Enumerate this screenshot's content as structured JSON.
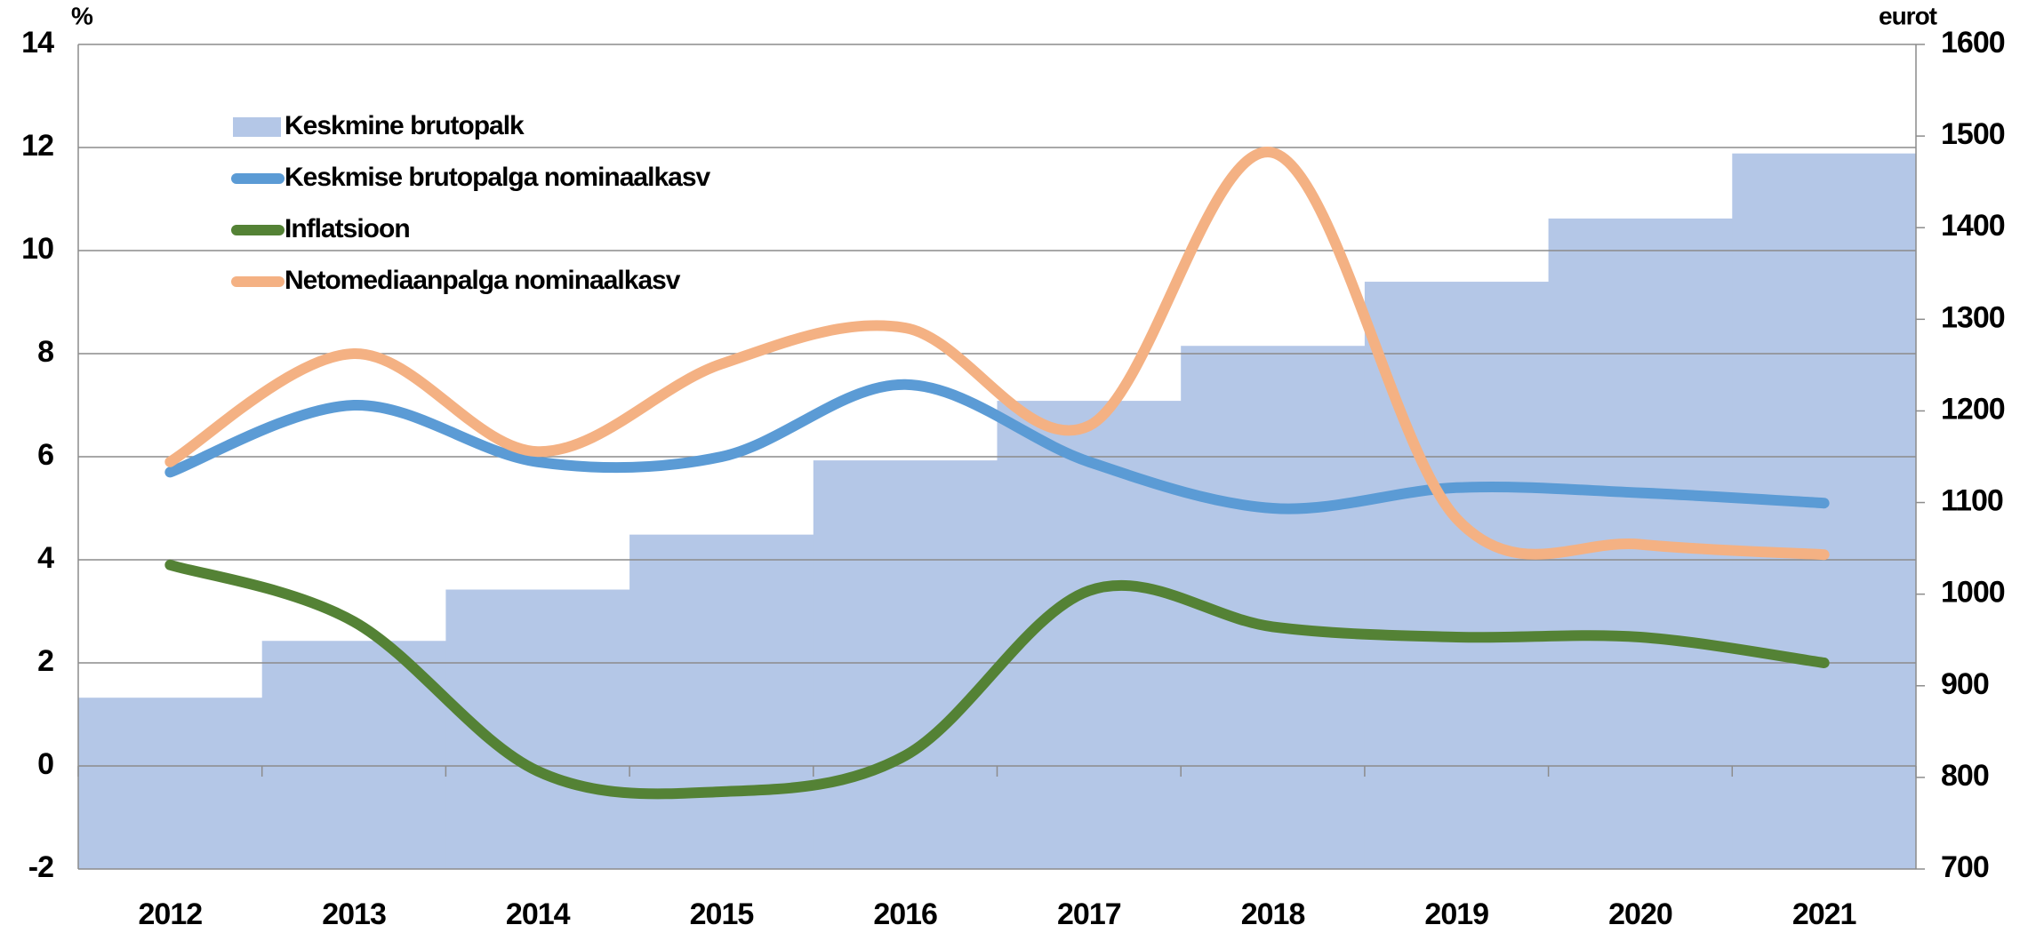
{
  "chart_data": {
    "type": "bar-line",
    "ylabel": "%",
    "y2label": "eurot",
    "categories": [
      "2012",
      "2013",
      "2014",
      "2015",
      "2016",
      "2017",
      "2018",
      "2019",
      "2020",
      "2021"
    ],
    "ylim": [
      -2,
      14
    ],
    "yticks": [
      -2,
      0,
      2,
      4,
      6,
      8,
      10,
      12,
      14
    ],
    "y2lim": [
      700,
      1600
    ],
    "y2ticks": [
      700,
      800,
      900,
      1000,
      1100,
      1200,
      1300,
      1400,
      1500,
      1600
    ],
    "grid": true,
    "legend": "upper left",
    "series": [
      {
        "name": "Keskmine brutopalk",
        "type": "bar",
        "axis": "y2",
        "color": "#b4c7e7",
        "values": [
          887,
          949,
          1005,
          1065,
          1146,
          1211,
          1271,
          1341,
          1410,
          1481
        ]
      },
      {
        "name": "Keskmise brutopalga nominaalkasv",
        "type": "line",
        "color": "#5b9bd5",
        "values": [
          5.7,
          7.0,
          5.9,
          6.0,
          7.4,
          5.9,
          5.0,
          5.4,
          5.3,
          5.1
        ]
      },
      {
        "name": "Inflatsioon",
        "type": "line",
        "color": "#548235",
        "values": [
          3.9,
          2.8,
          -0.1,
          -0.5,
          0.2,
          3.4,
          2.7,
          2.5,
          2.5,
          2.0
        ]
      },
      {
        "name": "Netomediaanpalga nominaalkasv",
        "type": "line",
        "color": "#f4b183",
        "values": [
          5.9,
          8.0,
          6.1,
          7.8,
          8.5,
          6.6,
          11.9,
          4.8,
          4.3,
          4.1
        ]
      }
    ]
  }
}
